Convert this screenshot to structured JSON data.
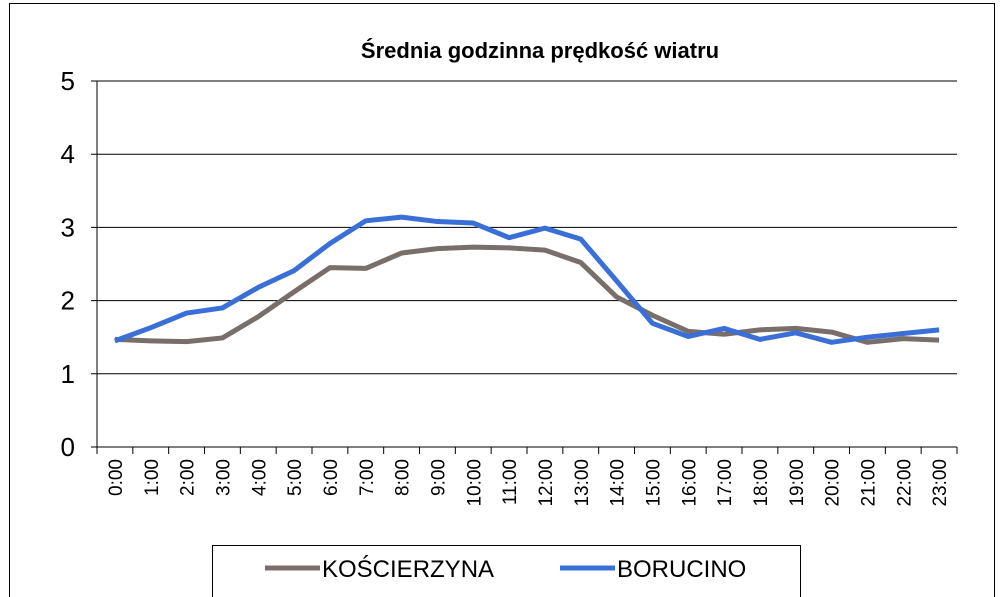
{
  "chart_data": {
    "type": "line",
    "title": "Średnia godzinna prędkość wiatru",
    "categories": [
      "0:00",
      "1:00",
      "2:00",
      "3:00",
      "4:00",
      "5:00",
      "6:00",
      "7:00",
      "8:00",
      "9:00",
      "10:00",
      "11:00",
      "12:00",
      "13:00",
      "14:00",
      "15:00",
      "16:00",
      "17:00",
      "18:00",
      "19:00",
      "20:00",
      "21:00",
      "22:00",
      "23:00"
    ],
    "series": [
      {
        "name": "KOŚCIERZYNA",
        "color": "#786e6a",
        "values": [
          1.47,
          1.45,
          1.44,
          1.49,
          1.78,
          2.12,
          2.45,
          2.44,
          2.65,
          2.71,
          2.73,
          2.72,
          2.69,
          2.52,
          2.05,
          1.8,
          1.58,
          1.54,
          1.6,
          1.62,
          1.57,
          1.43,
          1.48,
          1.46
        ]
      },
      {
        "name": "BORUCINO",
        "color": "#3a6fd8",
        "values": [
          1.45,
          1.63,
          1.83,
          1.9,
          2.18,
          2.41,
          2.78,
          3.09,
          3.14,
          3.08,
          3.06,
          2.86,
          2.99,
          2.84,
          2.27,
          1.69,
          1.51,
          1.62,
          1.47,
          1.56,
          1.43,
          1.5,
          1.55,
          1.6
        ]
      }
    ],
    "ylim": [
      0,
      5
    ],
    "yticks": [
      0,
      1,
      2,
      3,
      4,
      5
    ],
    "grid": true,
    "legend": "bottom"
  }
}
